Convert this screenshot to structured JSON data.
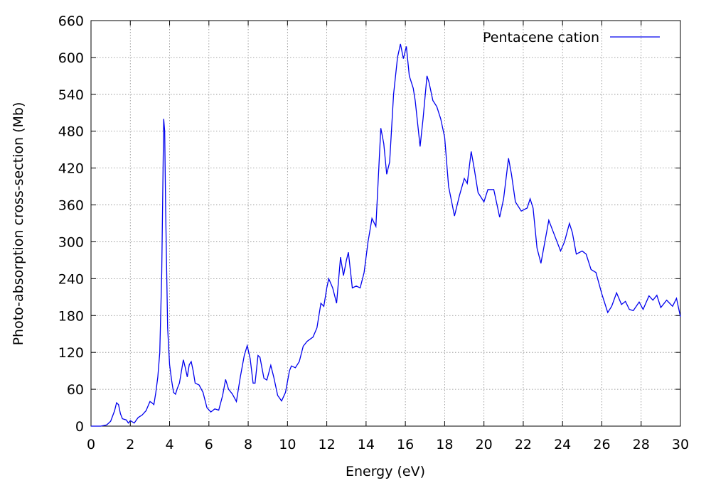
{
  "chart_data": {
    "type": "line",
    "xlabel": "Energy (eV)",
    "ylabel": "Photo-absorption cross-section (Mb)",
    "xlim": [
      0,
      30
    ],
    "ylim": [
      0,
      660
    ],
    "xticks": [
      0,
      2,
      4,
      6,
      8,
      10,
      12,
      14,
      16,
      18,
      20,
      22,
      24,
      26,
      28,
      30
    ],
    "yticks": [
      0,
      60,
      120,
      180,
      240,
      300,
      360,
      420,
      480,
      540,
      600,
      660
    ],
    "grid": true,
    "legend": "upper right",
    "x": [
      0,
      0.5,
      0.8,
      1.0,
      1.2,
      1.3,
      1.4,
      1.5,
      1.6,
      1.8,
      1.9,
      2.0,
      2.2,
      2.4,
      2.6,
      2.8,
      3.0,
      3.1,
      3.2,
      3.3,
      3.4,
      3.5,
      3.6,
      3.7,
      3.75,
      3.8,
      3.9,
      4.0,
      4.1,
      4.2,
      4.3,
      4.4,
      4.5,
      4.7,
      4.8,
      4.9,
      5.0,
      5.1,
      5.2,
      5.3,
      5.5,
      5.7,
      5.9,
      6.1,
      6.3,
      6.5,
      6.7,
      6.85,
      7.0,
      7.2,
      7.4,
      7.6,
      7.8,
      7.95,
      8.1,
      8.25,
      8.35,
      8.5,
      8.6,
      8.8,
      8.95,
      9.15,
      9.3,
      9.5,
      9.7,
      9.9,
      10.1,
      10.2,
      10.4,
      10.6,
      10.8,
      11.0,
      11.3,
      11.5,
      11.7,
      11.85,
      12.0,
      12.1,
      12.3,
      12.5,
      12.7,
      12.85,
      13.0,
      13.1,
      13.3,
      13.5,
      13.7,
      13.9,
      14.1,
      14.3,
      14.5,
      14.75,
      14.9,
      15.05,
      15.2,
      15.4,
      15.6,
      15.75,
      15.9,
      16.05,
      16.2,
      16.4,
      16.5,
      16.75,
      16.9,
      17.1,
      17.2,
      17.4,
      17.6,
      17.8,
      18.0,
      18.2,
      18.5,
      18.75,
      19.0,
      19.15,
      19.35,
      19.5,
      19.7,
      20.0,
      20.2,
      20.5,
      20.8,
      21.0,
      21.25,
      21.4,
      21.6,
      21.9,
      22.2,
      22.35,
      22.5,
      22.7,
      22.9,
      23.1,
      23.3,
      23.6,
      23.9,
      24.1,
      24.35,
      24.5,
      24.7,
      25.0,
      25.2,
      25.45,
      25.7,
      26.0,
      26.3,
      26.5,
      26.75,
      27.0,
      27.2,
      27.4,
      27.6,
      27.9,
      28.1,
      28.4,
      28.6,
      28.8,
      29.0,
      29.3,
      29.6,
      29.8,
      30.0
    ],
    "series": [
      {
        "name": "Pentacene cation",
        "color": "#0000ee",
        "values": [
          0,
          0,
          2,
          8,
          25,
          38,
          35,
          20,
          12,
          10,
          5,
          9,
          5,
          14,
          18,
          25,
          40,
          38,
          35,
          55,
          80,
          120,
          250,
          500,
          480,
          350,
          160,
          100,
          75,
          55,
          52,
          62,
          70,
          108,
          95,
          80,
          100,
          105,
          90,
          70,
          67,
          55,
          30,
          23,
          28,
          26,
          50,
          76,
          60,
          52,
          40,
          80,
          115,
          131,
          110,
          70,
          70,
          115,
          112,
          78,
          75,
          99,
          80,
          50,
          41,
          55,
          90,
          98,
          95,
          105,
          130,
          138,
          145,
          160,
          200,
          195,
          225,
          240,
          225,
          200,
          275,
          245,
          270,
          283,
          225,
          228,
          225,
          250,
          300,
          338,
          325,
          485,
          460,
          410,
          430,
          540,
          600,
          622,
          598,
          618,
          570,
          550,
          530,
          455,
          500,
          570,
          560,
          530,
          520,
          500,
          470,
          390,
          342,
          375,
          403,
          395,
          447,
          420,
          380,
          365,
          385,
          385,
          340,
          370,
          436,
          410,
          365,
          350,
          355,
          370,
          355,
          290,
          265,
          300,
          335,
          310,
          285,
          300,
          330,
          315,
          280,
          285,
          280,
          255,
          250,
          215,
          185,
          195,
          217,
          198,
          203,
          190,
          188,
          202,
          190,
          212,
          205,
          213,
          193,
          205,
          195,
          208,
          178
        ]
      }
    ]
  }
}
